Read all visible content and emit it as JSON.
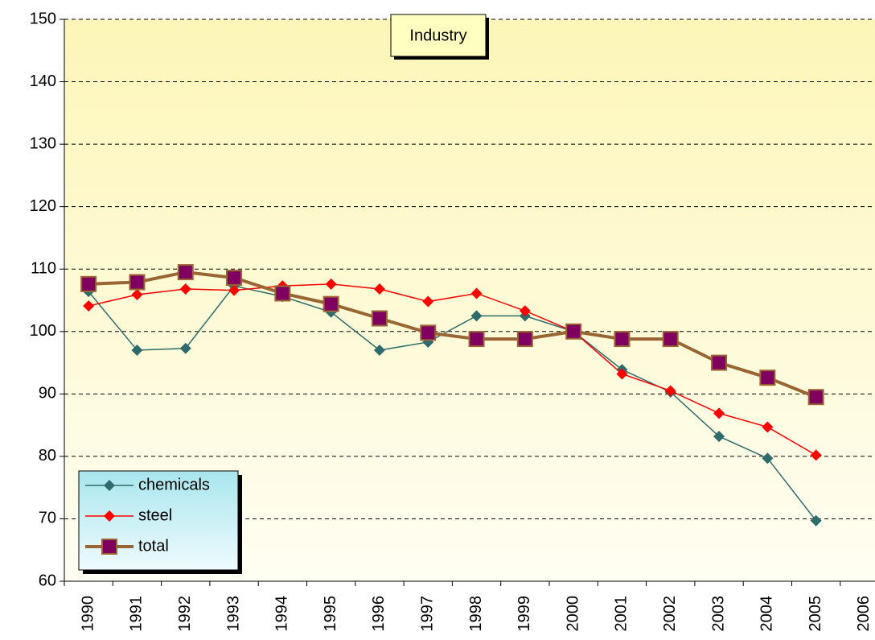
{
  "chart_data": {
    "type": "line",
    "title": "Industry",
    "categories": [
      "1990",
      "1991",
      "1992",
      "1993",
      "1994",
      "1995",
      "1996",
      "1997",
      "1998",
      "1999",
      "2000",
      "2001",
      "2002",
      "2003",
      "2004",
      "2005",
      "2006"
    ],
    "series": [
      {
        "name": "chemicals",
        "color": "#2e6b6b",
        "marker": "diamond",
        "values": [
          106.4,
          97.0,
          97.3,
          107.3,
          105.6,
          103.1,
          97.0,
          98.3,
          102.5,
          102.5,
          100,
          93.9,
          90.3,
          83.2,
          79.7,
          69.7,
          null
        ]
      },
      {
        "name": "steel",
        "color": "#ff0000",
        "marker": "diamond",
        "values": [
          104.1,
          105.9,
          106.8,
          106.6,
          107.3,
          107.6,
          106.8,
          104.8,
          106.1,
          103.3,
          100,
          93.2,
          90.5,
          86.9,
          84.7,
          80.2,
          null
        ]
      },
      {
        "name": "total",
        "color": "#996633",
        "marker": "square",
        "marker_color": "#800060",
        "values": [
          107.6,
          107.9,
          109.5,
          108.6,
          106.1,
          104.4,
          102.1,
          99.8,
          98.8,
          98.8,
          100,
          98.8,
          98.8,
          95.0,
          92.6,
          89.5,
          null
        ]
      }
    ],
    "ylim": [
      60,
      150
    ],
    "yticks": [
      60,
      70,
      80,
      90,
      100,
      110,
      120,
      130,
      140,
      150
    ],
    "grid": true,
    "legend": "lower left"
  }
}
